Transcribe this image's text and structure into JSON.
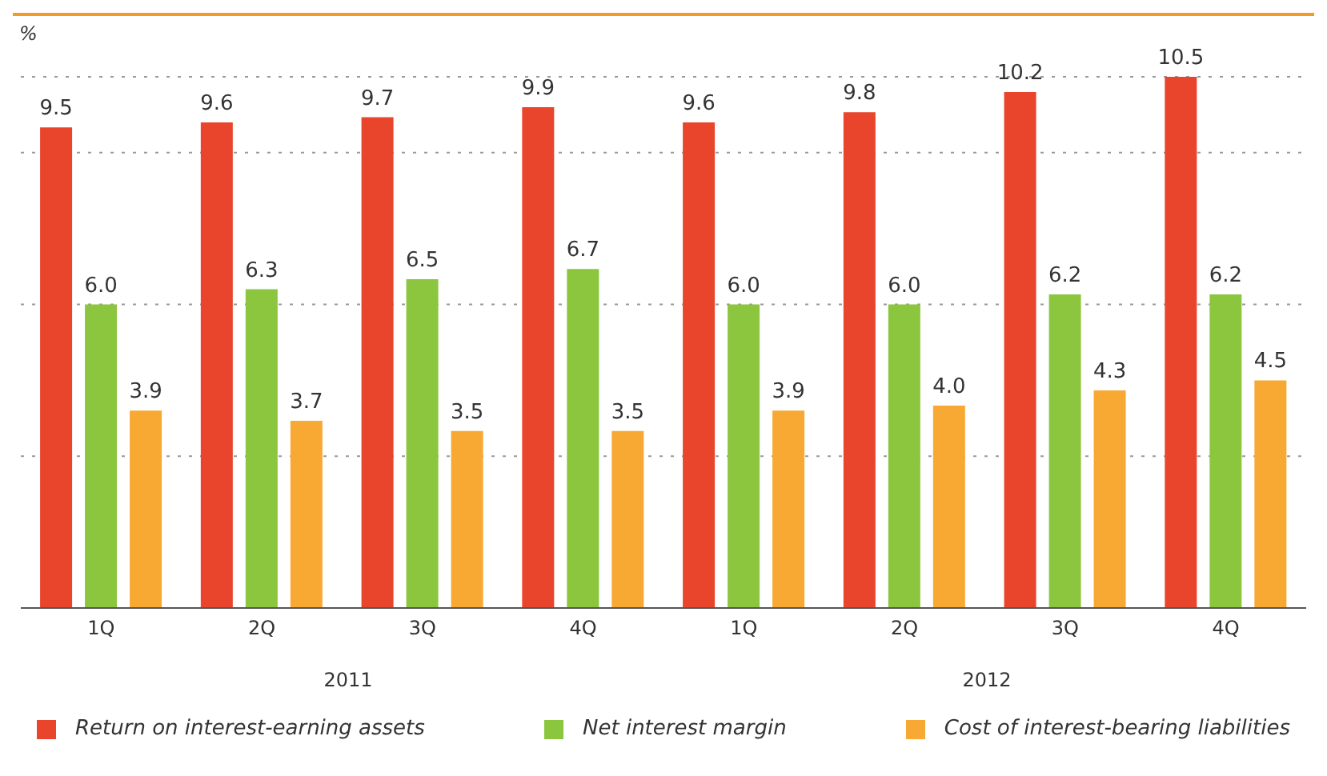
{
  "chart_data": {
    "type": "bar",
    "ylabel": "%",
    "categories": [
      "1Q",
      "2Q",
      "3Q",
      "4Q",
      "1Q",
      "2Q",
      "3Q",
      "4Q"
    ],
    "series": [
      {
        "name": "Return on interest-earning assets",
        "color": "#e8452c",
        "values": [
          9.5,
          9.6,
          9.7,
          9.9,
          9.6,
          9.8,
          10.2,
          10.5
        ],
        "value_labels": [
          "9.5",
          "9.6",
          "9.7",
          "9.9",
          "9.6",
          "9.8",
          "10.2",
          "10.5"
        ]
      },
      {
        "name": "Net interest margin",
        "color": "#8cc63f",
        "values": [
          6,
          6.3,
          6.5,
          6.7,
          6,
          6,
          6.2,
          6.2
        ],
        "value_labels": [
          "6.0",
          "6.3",
          "6.5",
          "6.7",
          "6.0",
          "6.0",
          "6.2",
          "6.2"
        ]
      },
      {
        "name": "Cost of interest-bearing liabilities",
        "color": "#f7a934",
        "values": [
          3.9,
          3.7,
          3.5,
          3.5,
          3.9,
          4,
          4.3,
          4.5
        ],
        "value_labels": [
          "3.9",
          "3.7",
          "3.5",
          "3.5",
          "3.9",
          "4.0",
          "4.3",
          "4.5"
        ]
      }
    ],
    "annotations": [
      "2011",
      "2012"
    ],
    "grid": "y",
    "legend": "bottom"
  }
}
